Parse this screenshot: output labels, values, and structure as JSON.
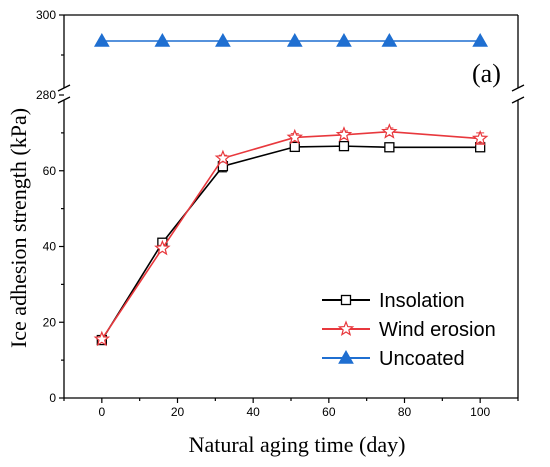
{
  "chart_data": {
    "type": "line",
    "panel_label": "(a)",
    "xlabel": "Natural aging time (day)",
    "ylabel": "Ice adhesion strength (kPa)",
    "xlim": [
      -10,
      110
    ],
    "x_ticks": [
      0,
      20,
      40,
      60,
      80,
      100
    ],
    "y_lower_range": [
      0,
      80
    ],
    "y_lower_ticks": [
      0,
      20,
      40,
      60
    ],
    "y_upper_range": [
      280,
      300
    ],
    "y_upper_ticks": [
      280,
      300
    ],
    "axis_break": true,
    "legend_position": "bottom-right",
    "series": [
      {
        "name": "Insolation",
        "color": "#000000",
        "marker": "open-square",
        "x": [
          0,
          16,
          32,
          51,
          64,
          76,
          100
        ],
        "y": [
          15.3,
          41,
          61.2,
          66.3,
          66.5,
          66.2,
          66.2
        ],
        "err": [
          0.8,
          1.0,
          1.5,
          1.0,
          1.0,
          1.0,
          1.0
        ]
      },
      {
        "name": "Wind erosion",
        "color": "#e8383d",
        "marker": "open-star",
        "x": [
          0,
          16,
          32,
          51,
          64,
          76,
          100
        ],
        "y": [
          15.5,
          39.5,
          63.3,
          68.8,
          69.5,
          70.3,
          68.5
        ],
        "err": [
          0.5,
          0.8,
          0.8,
          1.0,
          1.0,
          1.0,
          1.5
        ]
      },
      {
        "name": "Uncoated",
        "color": "#1f6fd1",
        "marker": "filled-triangle",
        "x": [
          0,
          16,
          32,
          51,
          64,
          76,
          100
        ],
        "y": [
          293.5,
          293.5,
          293.5,
          293.5,
          293.5,
          293.5,
          293.5
        ],
        "err": [
          0,
          0,
          0,
          0,
          0,
          0,
          0
        ]
      }
    ]
  }
}
